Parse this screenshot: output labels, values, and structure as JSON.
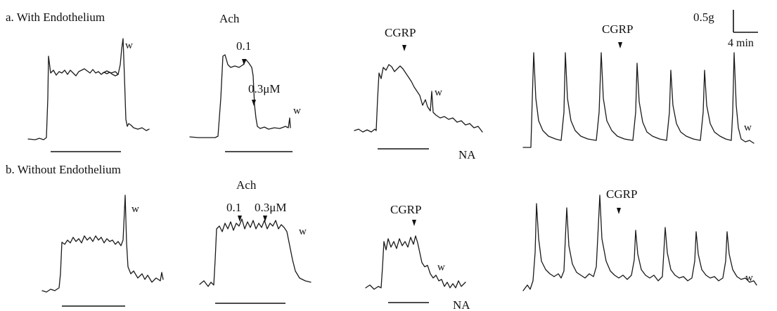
{
  "row_a": {
    "label": "a. With Endothelium"
  },
  "row_b": {
    "label": "b. Without Endothelium"
  },
  "scale_bar": {
    "force": "0.5g",
    "time": "4 min"
  },
  "agonist_label": "NA",
  "washout_label": "w",
  "panel_labels": {
    "ach": "Ach",
    "cgrp": "CGRP",
    "dose_a_1": "0.1",
    "dose_a_2": "0.3μM",
    "dose_b_1": "0.1",
    "dose_b_2": "0.3μM"
  },
  "colors": {
    "ink": "#111111",
    "background": "#ffffff"
  }
}
